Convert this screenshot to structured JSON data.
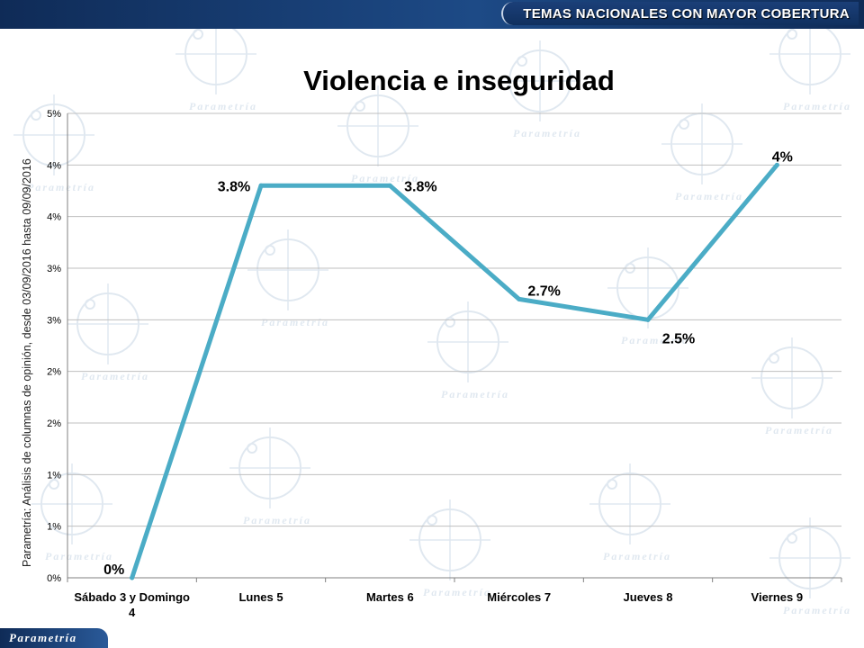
{
  "header": {
    "tag": "TEMAS NACIONALES CON MAYOR COBERTURA"
  },
  "side_note": "Parametría: Análisis de columnas de opinión, desde 03/09/2016 hasta  09/09/2016",
  "footer": {
    "logo": "Parametría"
  },
  "watermark": {
    "word": "Parametría",
    "color": "#dde6ef"
  },
  "colors": {
    "line": "#4bacc6",
    "grid": "#bfbfbf",
    "header": "#123466"
  },
  "chart_data": {
    "type": "line",
    "title": "Violencia e inseguridad",
    "xlabel": "",
    "ylabel": "",
    "grid": true,
    "legend": "none",
    "ylim": [
      0,
      4.5
    ],
    "y_ticks": [
      0,
      0.5,
      1,
      1.5,
      2,
      2.5,
      3,
      3.5,
      4,
      4.5
    ],
    "y_tick_labels": [
      "0%",
      "1%",
      "1%",
      "2%",
      "2%",
      "3%",
      "3%",
      "4%",
      "4%",
      "5%"
    ],
    "categories": [
      [
        "Sábado 3 y Domingo",
        "4"
      ],
      [
        "Lunes 5"
      ],
      [
        "Martes 6"
      ],
      [
        "Miércoles 7"
      ],
      [
        "Jueves 8"
      ],
      [
        "Viernes 9"
      ]
    ],
    "series": [
      {
        "values": [
          0,
          3.8,
          3.8,
          2.7,
          2.5,
          4
        ],
        "data_labels": [
          "0%",
          "3.8%",
          "3.8%",
          "2.7%",
          "2.5%",
          "4%"
        ]
      }
    ]
  }
}
